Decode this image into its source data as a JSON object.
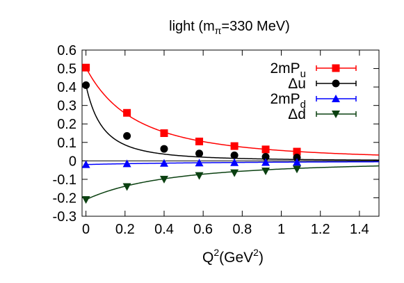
{
  "chart_data": {
    "type": "scatter",
    "title": "light (m",
    "title_sub": "π",
    "title_rest": "=330 MeV)",
    "xlabel": "Q",
    "xlabel_sup": "2",
    "xlabel_mid": "(GeV",
    "xlabel_sup2": "2",
    "xlabel_end": ")",
    "ylabel": "",
    "xlim": [
      -0.02,
      1.5
    ],
    "ylim": [
      -0.3,
      0.6
    ],
    "xticks": [
      0,
      0.2,
      0.4,
      0.6,
      0.8,
      1,
      1.2,
      1.4
    ],
    "xtick_labels": [
      "0",
      "0.2",
      "0.4",
      "0.6",
      "0.8",
      "1",
      "1.2",
      "1.4"
    ],
    "yticks": [
      -0.3,
      -0.2,
      -0.1,
      0,
      0.1,
      0.2,
      0.3,
      0.4,
      0.5,
      0.6
    ],
    "ytick_labels": [
      "-0.3",
      "-0.2",
      "-0.1",
      "0",
      "0.1",
      "0.2",
      "0.3",
      "0.4",
      "0.5",
      "0.6"
    ],
    "grid": false,
    "legend_position": "top-right",
    "series": [
      {
        "name": "2mP",
        "name_sub": "u",
        "color": "#ff0000",
        "marker": "square",
        "x": [
          0,
          0.21,
          0.4,
          0.58,
          0.76,
          0.92,
          1.08
        ],
        "y": [
          0.505,
          0.26,
          0.15,
          0.105,
          0.08,
          0.062,
          0.05
        ],
        "fit": {
          "form": "a/(1+x/b)^2",
          "a": 0.505,
          "b": 0.5
        }
      },
      {
        "name": "Δu",
        "name_sub": "",
        "color": "#000000",
        "marker": "circle",
        "x": [
          0,
          0.21,
          0.4,
          0.58,
          0.76,
          0.92,
          1.08
        ],
        "y": [
          0.41,
          0.135,
          0.065,
          0.04,
          0.03,
          0.022,
          0.018
        ],
        "fit": {
          "form": "a/(1+x/b)^2",
          "a": 0.41,
          "b": 0.17
        }
      },
      {
        "name": "2mP",
        "name_sub": "d",
        "color": "#0000ff",
        "marker": "triangle-up",
        "x": [
          0,
          0.21,
          0.4,
          0.58,
          0.76,
          0.92,
          1.08
        ],
        "y": [
          -0.02,
          -0.015,
          -0.013,
          -0.011,
          -0.009,
          -0.008,
          -0.007
        ],
        "fit": {
          "form": "a/(1+x/b)^2",
          "a": -0.02,
          "b": 1.5
        }
      },
      {
        "name": "Δd",
        "name_sub": "",
        "color": "#0a4010",
        "marker": "triangle-down",
        "x": [
          0,
          0.21,
          0.4,
          0.58,
          0.76,
          0.92,
          1.08
        ],
        "y": [
          -0.21,
          -0.14,
          -0.1,
          -0.08,
          -0.065,
          -0.055,
          -0.045
        ],
        "fit": {
          "form": "a/(1+x/b)^2",
          "a": -0.21,
          "b": 0.85
        }
      }
    ]
  }
}
